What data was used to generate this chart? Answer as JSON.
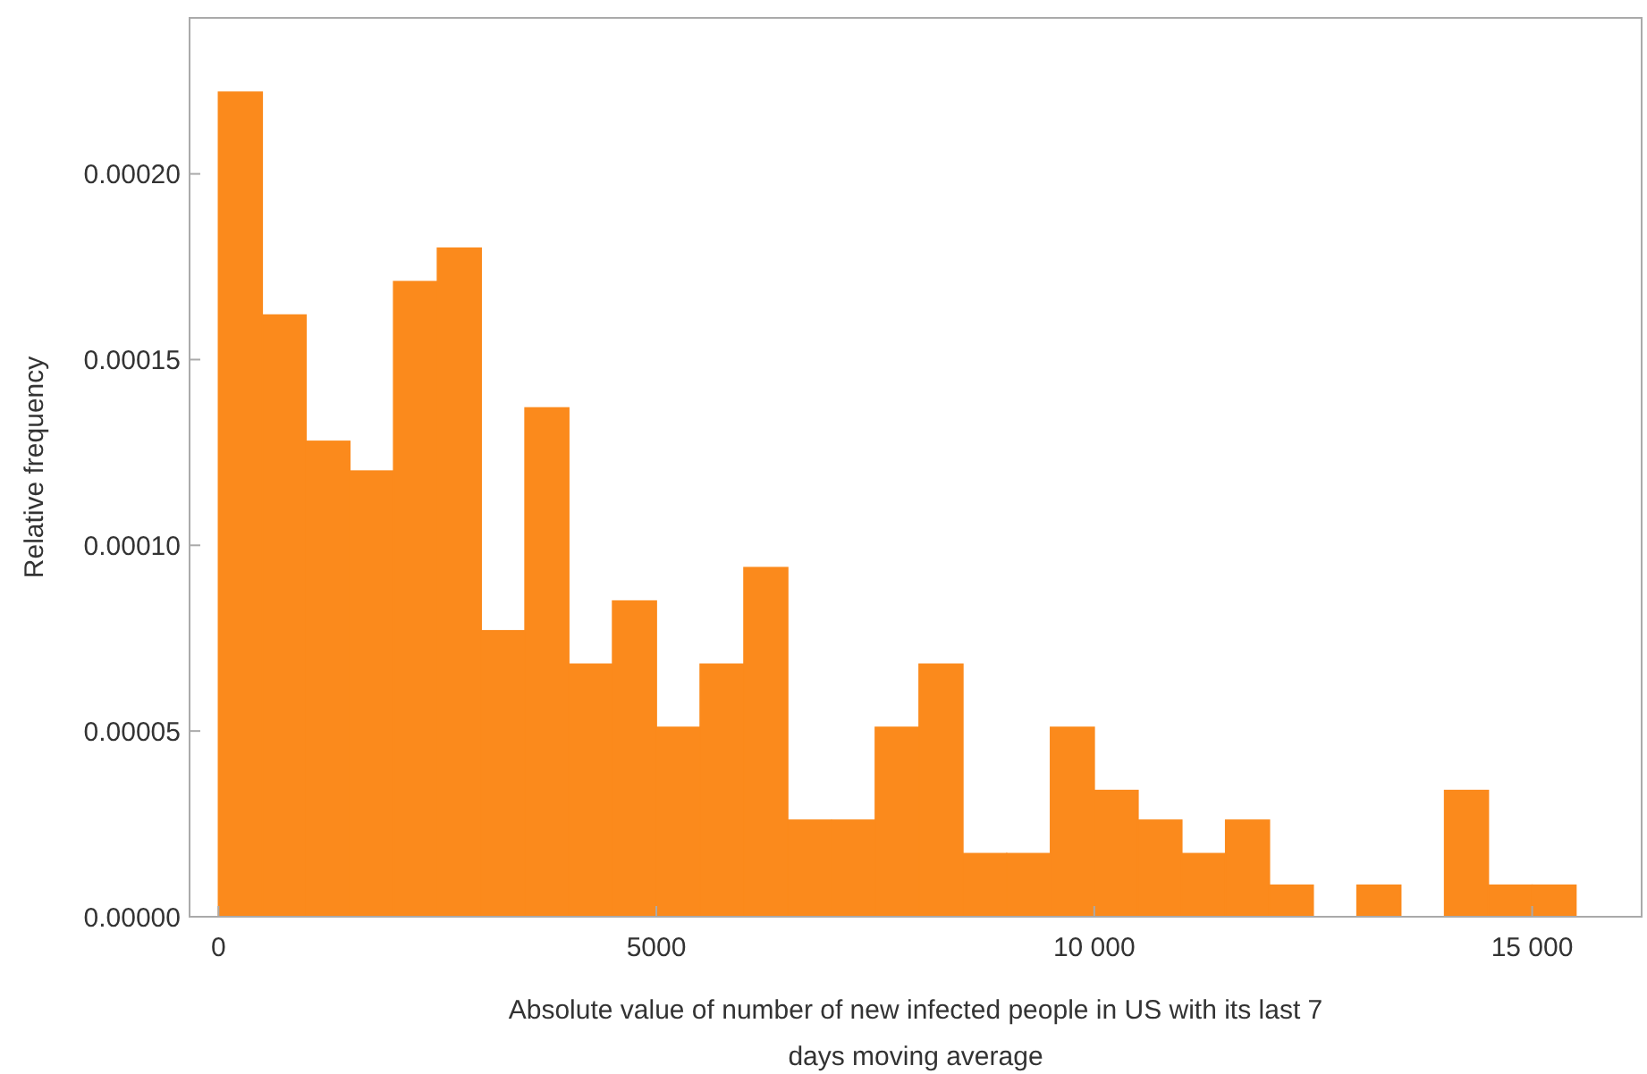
{
  "chart_data": {
    "type": "histogram",
    "xlabel": "Absolute value of number of new infected people in US with its last 7 days moving average",
    "ylabel": "Relative frequency",
    "bins": [
      0,
      500,
      1000,
      1500,
      2000,
      2500,
      3000,
      3500,
      4000,
      4500,
      5000,
      5500,
      6000,
      6500,
      7000,
      7500,
      8000,
      8500,
      9000,
      9500,
      10000,
      10500,
      11000,
      11500,
      12000,
      12500,
      13000,
      13500,
      14000,
      14500,
      15000,
      15500
    ],
    "values": [
      0.000222,
      0.000162,
      0.000128,
      0.00012,
      0.000171,
      0.00018,
      7.7e-05,
      0.000137,
      6.8e-05,
      8.5e-05,
      5.1e-05,
      6.8e-05,
      9.4e-05,
      2.6e-05,
      2.6e-05,
      5.1e-05,
      6.8e-05,
      1.7e-05,
      1.7e-05,
      5.1e-05,
      3.4e-05,
      2.6e-05,
      1.7e-05,
      2.6e-05,
      8.5e-06,
      0,
      8.5e-06,
      0,
      3.4e-05,
      8.5e-06,
      8.5e-06
    ],
    "color": "#fb8a1c",
    "xlim": [
      -330,
      16250
    ],
    "ylim": [
      0,
      0.000242
    ],
    "xticks": [
      0,
      5000,
      {
        "value": 10000,
        "label": "10 000"
      },
      {
        "value": 15000,
        "label": "15 000"
      }
    ],
    "yticks": [
      {
        "value": 0,
        "label": "0.00000"
      },
      {
        "value": 5e-05,
        "label": "0.00005"
      },
      {
        "value": 0.0001,
        "label": "0.00010"
      },
      {
        "value": 0.00015,
        "label": "0.00015"
      },
      {
        "value": 0.0002,
        "label": "0.00020"
      }
    ],
    "grid": false
  }
}
